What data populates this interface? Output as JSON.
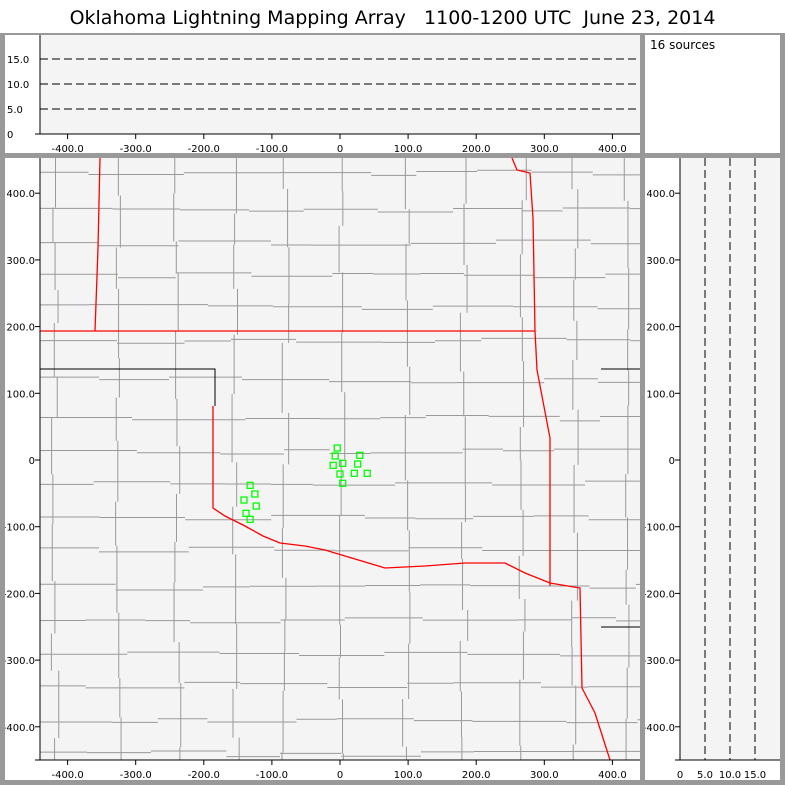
{
  "title": "Oklahoma Lightning Mapping Array   1100-1200 UTC  June 23, 2014",
  "source_count": "16 sources",
  "colors": {
    "source": "#00ff00",
    "state_border": "#ff0000",
    "county": "#999999",
    "background": "#f4f4f4"
  },
  "alt_ticks": [
    "0",
    "5.0",
    "10.0",
    "15.0"
  ],
  "alt_values": [
    0,
    5,
    10,
    15
  ],
  "x_ticks": [
    "-400.0",
    "-300.0",
    "-200.0",
    "-100.0",
    "0",
    "100.0",
    "200.0",
    "300.0",
    "400.0"
  ],
  "x_values": [
    -400,
    -300,
    -200,
    -100,
    0,
    100,
    200,
    300,
    400
  ],
  "y_ticks": [
    "400.0",
    "300.0",
    "200.0",
    "100.0",
    "0",
    "-100.0",
    "-200.0",
    "-300.0",
    "-400.0"
  ],
  "y_values": [
    400,
    300,
    200,
    100,
    0,
    -100,
    -200,
    -300,
    -400
  ],
  "chart_data": {
    "type": "scatter",
    "xlim": [
      -450,
      450
    ],
    "ylim": [
      -450,
      450
    ],
    "zlim": [
      0,
      20
    ],
    "sources_km": [
      [
        -4,
        18
      ],
      [
        -7,
        6
      ],
      [
        29,
        7
      ],
      [
        -10,
        -8
      ],
      [
        4,
        -5
      ],
      [
        26,
        -6
      ],
      [
        0,
        -21
      ],
      [
        21,
        -20
      ],
      [
        40,
        -20
      ],
      [
        4,
        -35
      ],
      [
        -132,
        -38
      ],
      [
        -125,
        -51
      ],
      [
        -141,
        -60
      ],
      [
        -123,
        -69
      ],
      [
        -138,
        -80
      ],
      [
        -132,
        -89
      ]
    ]
  }
}
